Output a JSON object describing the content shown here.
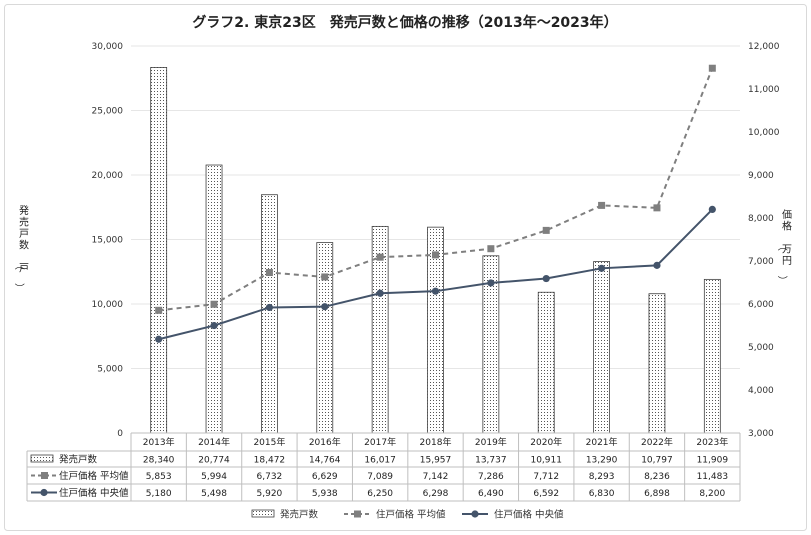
{
  "chart_data": {
    "type": "bar",
    "title": "グラフ2. 東京23区　発売戸数と価格の推移（2013年～2023年）",
    "categories": [
      "2013年",
      "2014年",
      "2015年",
      "2016年",
      "2017年",
      "2018年",
      "2019年",
      "2020年",
      "2021年",
      "2022年",
      "2023年"
    ],
    "ylabel_left": "発売戸数（戸）",
    "ylabel_right": "価格（万円）",
    "ylim_left": [
      0,
      30000
    ],
    "ylim_right": [
      3000,
      12000
    ],
    "yticks_left": [
      "0",
      "5,000",
      "10,000",
      "15,000",
      "20,000",
      "25,000",
      "30,000"
    ],
    "yticks_right": [
      "3,000",
      "4,000",
      "5,000",
      "6,000",
      "7,000",
      "8,000",
      "9,000",
      "10,000",
      "11,000",
      "12,000"
    ],
    "grid": true,
    "legend_position": "bottom",
    "series": [
      {
        "name": "発売戸数",
        "type": "bar",
        "axis": "left",
        "values": [
          28340,
          20774,
          18472,
          14764,
          16017,
          15957,
          13737,
          10911,
          13290,
          10797,
          11909
        ],
        "labels": [
          "28,340",
          "20,774",
          "18,472",
          "14,764",
          "16,017",
          "15,957",
          "13,737",
          "10,911",
          "13,290",
          "10,797",
          "11,909"
        ]
      },
      {
        "name": "住戸価格 平均値",
        "type": "line",
        "axis": "right",
        "style": "dashed",
        "color": "#7f7f7f",
        "marker": "square",
        "values": [
          5853,
          5994,
          6732,
          6629,
          7089,
          7142,
          7286,
          7712,
          8293,
          8236,
          11483
        ],
        "labels": [
          "5,853",
          "5,994",
          "6,732",
          "6,629",
          "7,089",
          "7,142",
          "7,286",
          "7,712",
          "8,293",
          "8,236",
          "11,483"
        ]
      },
      {
        "name": "住戸価格 中央値",
        "type": "line",
        "axis": "right",
        "style": "solid",
        "color": "#44546a",
        "marker": "circle",
        "values": [
          5180,
          5498,
          5920,
          5938,
          6250,
          6298,
          6490,
          6592,
          6830,
          6898,
          8200
        ],
        "labels": [
          "5,180",
          "5,498",
          "5,920",
          "5,938",
          "6,250",
          "6,298",
          "6,490",
          "6,592",
          "6,830",
          "6,898",
          "8,200"
        ]
      }
    ]
  }
}
